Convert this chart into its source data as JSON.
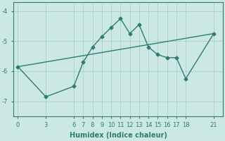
{
  "xlabel": "Humidex (Indice chaleur)",
  "ylabel": "",
  "background_color": "#cce8e4",
  "grid_color": "#aad0cc",
  "line_color": "#2d7d72",
  "xlim": [
    -0.5,
    22
  ],
  "ylim": [
    -7.5,
    -3.7
  ],
  "yticks": [
    -7,
    -6,
    -5,
    -4
  ],
  "xticks": [
    0,
    3,
    6,
    7,
    8,
    9,
    10,
    11,
    12,
    13,
    14,
    15,
    16,
    17,
    18,
    21
  ],
  "line1_x": [
    0,
    3,
    6,
    7,
    8,
    9,
    10,
    11,
    12,
    13,
    14,
    15,
    16,
    17,
    18,
    21
  ],
  "line1_y": [
    -5.85,
    -6.85,
    -6.5,
    -5.7,
    -5.2,
    -4.85,
    -4.55,
    -4.25,
    -4.75,
    -4.45,
    -5.2,
    -5.45,
    -5.55,
    -5.55,
    -6.25,
    -4.75
  ],
  "line2_x": [
    0,
    21
  ],
  "line2_y": [
    -5.85,
    -4.75
  ],
  "marker_style": "D",
  "marker_size": 2.5,
  "line_width": 1.0,
  "tick_fontsize": 6,
  "label_fontsize": 7
}
